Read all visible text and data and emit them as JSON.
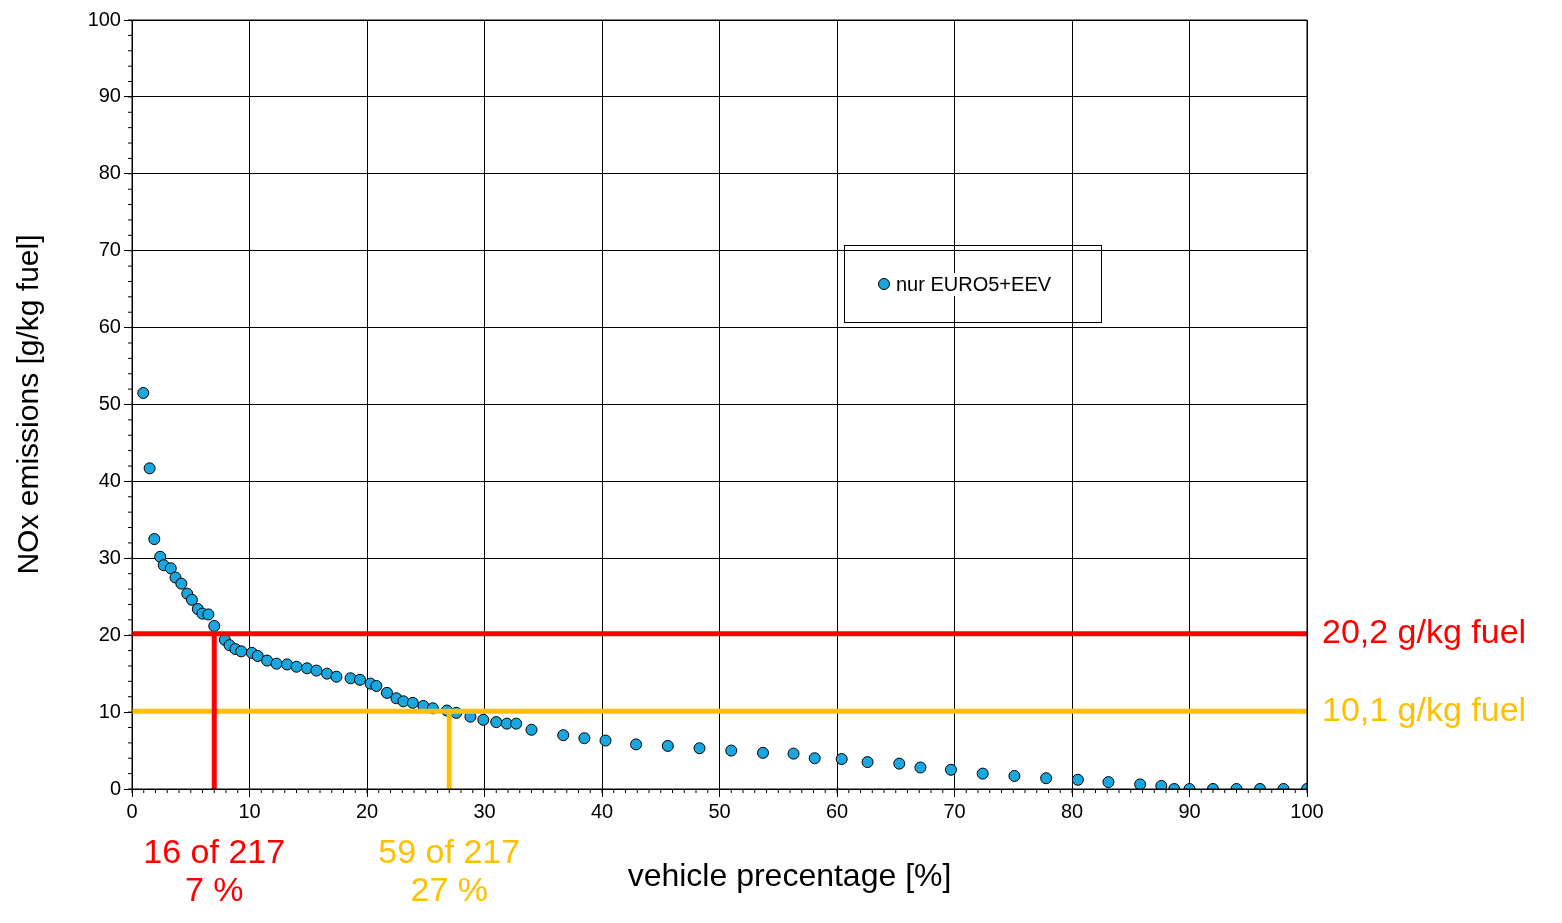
{
  "chart_data": {
    "type": "scatter",
    "xlabel": "vehicle precentage [%]",
    "ylabel": "NOx emissions [g/kg fuel]",
    "xlim": [
      0,
      100
    ],
    "xticks": [
      0,
      10,
      20,
      30,
      40,
      50,
      60,
      70,
      80,
      90,
      100
    ],
    "ylim": [
      0,
      100
    ],
    "yticks": [
      0,
      10,
      20,
      30,
      40,
      50,
      60,
      70,
      80,
      90,
      100
    ],
    "grid": true,
    "legend": "top right",
    "marker": "circle",
    "series": [
      {
        "name": "nur EURO5+EEV",
        "color": "#1aa7e0",
        "x": [
          0.96,
          1.5,
          1.9,
          2.4,
          2.7,
          3.3,
          3.7,
          4.2,
          4.7,
          5.1,
          5.6,
          6.0,
          6.5,
          7.0,
          7.9,
          8.3,
          8.8,
          9.3,
          10.2,
          10.7,
          11.5,
          12.3,
          13.2,
          14.0,
          14.9,
          15.7,
          16.6,
          17.4,
          18.6,
          19.4,
          20.3,
          20.8,
          21.7,
          22.5,
          23.1,
          23.9,
          24.8,
          25.6,
          26.8,
          27.6,
          28.8,
          29.9,
          31.0,
          31.9,
          32.7,
          34.0,
          36.7,
          38.5,
          40.3,
          42.9,
          45.6,
          48.3,
          51.0,
          53.7,
          56.3,
          58.1,
          60.4,
          62.6,
          65.3,
          67.1,
          69.7,
          72.4,
          75.1,
          77.8,
          80.5,
          83.1,
          85.8,
          87.6,
          88.7,
          90,
          92,
          94,
          96,
          98,
          100
        ],
        "values": [
          51.5,
          41.7,
          32.5,
          30.2,
          29.1,
          28.7,
          27.5,
          26.7,
          25.4,
          24.6,
          23.4,
          22.8,
          22.7,
          21.2,
          19.4,
          18.7,
          18.2,
          17.9,
          17.7,
          17.3,
          16.7,
          16.3,
          16.2,
          15.9,
          15.7,
          15.4,
          15.0,
          14.6,
          14.4,
          14.2,
          13.7,
          13.4,
          12.5,
          11.8,
          11.4,
          11.2,
          10.8,
          10.5,
          10.2,
          9.9,
          9.4,
          9.0,
          8.7,
          8.5,
          8.5,
          7.7,
          7.0,
          6.6,
          6.3,
          5.8,
          5.6,
          5.3,
          5.0,
          4.7,
          4.6,
          4.0,
          3.9,
          3.5,
          3.3,
          2.8,
          2.5,
          2.0,
          1.7,
          1.4,
          1.2,
          0.9,
          0.6,
          0.4,
          0,
          0,
          0,
          0,
          0,
          0,
          0
        ]
      }
    ],
    "ref_lines": [
      {
        "axis": "y",
        "value": 20.2,
        "label": "20,2 g/kg fuel",
        "color": "#ff0000"
      },
      {
        "axis": "y",
        "value": 10.1,
        "label": "10,1 g/kg fuel",
        "color": "#ffc000"
      },
      {
        "axis": "x",
        "value": 7,
        "label": "16 of 217\n7 %",
        "color": "#ff0000"
      },
      {
        "axis": "x",
        "value": 27,
        "label": "59 of 217\n27 %",
        "color": "#ffc000"
      }
    ]
  }
}
